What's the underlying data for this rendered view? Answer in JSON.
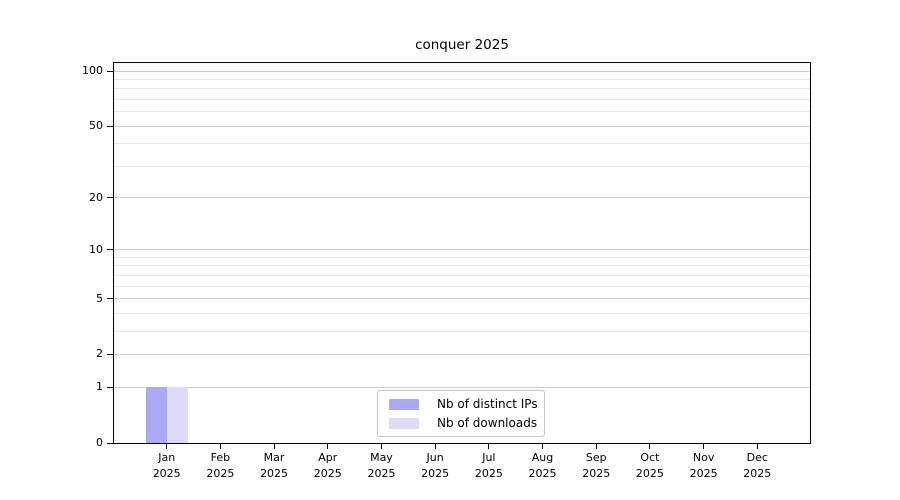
{
  "figure": {
    "background": "#ffffff"
  },
  "chart_data": {
    "type": "bar",
    "title": "conquer 2025",
    "categories": [
      "Jan",
      "Feb",
      "Mar",
      "Apr",
      "May",
      "Jun",
      "Jul",
      "Aug",
      "Sep",
      "Oct",
      "Nov",
      "Dec"
    ],
    "category_year": "2025",
    "series": [
      {
        "name": "Nb of distinct IPs",
        "color": "#aaaaf4",
        "values": [
          1,
          0,
          0,
          0,
          0,
          0,
          0,
          0,
          0,
          0,
          0,
          0
        ]
      },
      {
        "name": "Nb of downloads",
        "color": "#dcdcf8",
        "values": [
          1,
          0,
          0,
          0,
          0,
          0,
          0,
          0,
          0,
          0,
          0,
          0
        ]
      }
    ],
    "y_axis": {
      "scale": "log1p",
      "major_ticks": [
        0,
        1,
        2,
        5,
        10,
        20,
        50,
        100
      ],
      "minor_ticks": [
        3,
        4,
        6,
        7,
        8,
        9,
        30,
        40,
        60,
        70,
        80,
        90
      ],
      "min": 0,
      "max": 100
    },
    "x_axis": {
      "tick_count": 12
    },
    "legend": {
      "position": "lower center"
    },
    "grid": {
      "enabled": true,
      "major_color": "#cdcdcd",
      "minor_color": "#e9e9e9"
    },
    "colors": {
      "axis": "#000000",
      "text": "#000000"
    }
  }
}
